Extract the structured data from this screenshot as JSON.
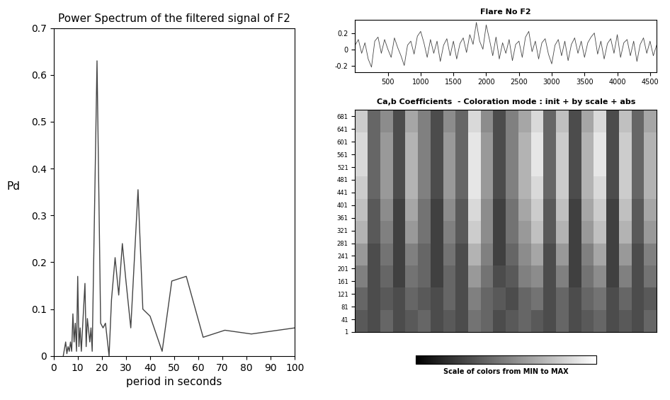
{
  "chart_data": [
    {
      "type": "line",
      "title": "Power Spectrum of the filtered signal of F2",
      "x_label": "period in seconds",
      "y_label": "Pd",
      "color": "#444444",
      "x": [
        4,
        5,
        5.5,
        6,
        6.5,
        7,
        7.5,
        8,
        8.5,
        9,
        9.5,
        10,
        10.5,
        11,
        11.5,
        12,
        13,
        13.5,
        14,
        15,
        15.5,
        16,
        18,
        19.5,
        20.5,
        21.5,
        23,
        24,
        25.5,
        27,
        28.5,
        30,
        32,
        35,
        37,
        40,
        45,
        49,
        55,
        62,
        71,
        82,
        100
      ],
      "values": [
        0,
        0.03,
        0.005,
        0.02,
        0.01,
        0.03,
        0.01,
        0.09,
        0.03,
        0.07,
        0.01,
        0.17,
        0.02,
        0.06,
        0.01,
        0.06,
        0.155,
        0.02,
        0.08,
        0.03,
        0.06,
        0.01,
        0.63,
        0.07,
        0.06,
        0.07,
        0.0,
        0.12,
        0.21,
        0.13,
        0.24,
        0.16,
        0.06,
        0.355,
        0.1,
        0.085,
        0.01,
        0.16,
        0.17,
        0.04,
        0.055,
        0.047,
        0.06
      ],
      "xlim": [
        0,
        100
      ],
      "xticks": [
        0,
        10,
        20,
        30,
        40,
        50,
        60,
        70,
        80,
        90,
        100
      ],
      "ylim": [
        0,
        0.7
      ],
      "yticks": [
        0,
        0.1,
        0.2,
        0.3,
        0.4,
        0.5,
        0.6,
        0.7
      ]
    },
    {
      "type": "line",
      "title": "Flare No F2",
      "color": "#444444",
      "x": [
        0,
        50,
        100,
        150,
        200,
        250,
        300,
        350,
        400,
        450,
        500,
        550,
        600,
        650,
        700,
        750,
        800,
        850,
        900,
        950,
        1000,
        1050,
        1100,
        1150,
        1200,
        1250,
        1300,
        1350,
        1400,
        1450,
        1500,
        1550,
        1600,
        1650,
        1700,
        1750,
        1800,
        1850,
        1900,
        1950,
        2000,
        2050,
        2100,
        2150,
        2200,
        2250,
        2300,
        2350,
        2400,
        2450,
        2500,
        2550,
        2600,
        2650,
        2700,
        2750,
        2800,
        2850,
        2900,
        2950,
        3000,
        3050,
        3100,
        3150,
        3200,
        3250,
        3300,
        3350,
        3400,
        3450,
        3500,
        3550,
        3600,
        3650,
        3700,
        3750,
        3800,
        3850,
        3900,
        3950,
        4000,
        4050,
        4100,
        4150,
        4200,
        4250,
        4300,
        4350,
        4400,
        4450,
        4500,
        4550,
        4600
      ],
      "values": [
        0.05,
        0.12,
        -0.05,
        0.08,
        -0.12,
        -0.22,
        0.1,
        0.15,
        -0.05,
        0.12,
        0.0,
        -0.1,
        0.14,
        0.02,
        -0.08,
        -0.2,
        0.05,
        0.1,
        -0.06,
        0.16,
        0.22,
        0.08,
        -0.1,
        0.12,
        -0.05,
        0.1,
        -0.15,
        0.05,
        0.13,
        -0.08,
        0.1,
        -0.12,
        0.07,
        0.14,
        -0.04,
        0.18,
        0.06,
        0.33,
        0.1,
        0.0,
        0.3,
        0.12,
        -0.08,
        0.15,
        -0.12,
        0.08,
        -0.05,
        0.12,
        -0.14,
        0.06,
        0.1,
        -0.1,
        0.15,
        0.22,
        -0.03,
        0.1,
        -0.12,
        0.08,
        0.13,
        -0.06,
        -0.18,
        0.05,
        0.12,
        -0.08,
        0.1,
        -0.14,
        0.06,
        0.14,
        -0.05,
        0.1,
        -0.1,
        0.08,
        0.15,
        0.2,
        -0.06,
        0.1,
        -0.12,
        0.07,
        0.13,
        -0.05,
        0.18,
        -0.1,
        0.08,
        0.12,
        -0.08,
        0.1,
        -0.15,
        0.06,
        0.14,
        -0.05,
        0.1,
        -0.08,
        0.05
      ],
      "xlim": [
        0,
        4600
      ],
      "xticks": [
        500,
        1000,
        1500,
        2000,
        2500,
        3000,
        3500,
        4000,
        4500
      ],
      "ylim": [
        -0.28,
        0.36
      ],
      "yticks": [
        -0.2,
        0,
        0.2
      ]
    },
    {
      "type": "heatmap",
      "title": "Ca,b Coefficients  - Coloration mode : init + by scale + abs",
      "colorbar_label": "Scale of colors from MIN to MAX",
      "tick_labels": "y",
      "x_edges": [
        0,
        192,
        383,
        575,
        767,
        958,
        1150,
        1342,
        1533,
        1725,
        1917,
        2108,
        2300,
        2492,
        2683,
        2875,
        3067,
        3258,
        3450,
        3642,
        3833,
        4025,
        4217,
        4408,
        4600
      ],
      "y_edges": [
        1,
        71,
        141,
        211,
        281,
        351,
        421,
        491,
        561,
        631,
        701
      ],
      "cells": [
        [
          0.35,
          0.3,
          0.4,
          0.3,
          0.35,
          0.4,
          0.3,
          0.35,
          0.3,
          0.45,
          0.4,
          0.3,
          0.35,
          0.4,
          0.35,
          0.3,
          0.4,
          0.3,
          0.35,
          0.4,
          0.3,
          0.35,
          0.3,
          0.4
        ],
        [
          0.4,
          0.3,
          0.35,
          0.3,
          0.4,
          0.35,
          0.3,
          0.4,
          0.3,
          0.5,
          0.4,
          0.35,
          0.3,
          0.4,
          0.45,
          0.3,
          0.4,
          0.3,
          0.4,
          0.45,
          0.3,
          0.4,
          0.3,
          0.35
        ],
        [
          0.5,
          0.3,
          0.4,
          0.25,
          0.45,
          0.4,
          0.25,
          0.4,
          0.3,
          0.6,
          0.45,
          0.3,
          0.35,
          0.5,
          0.55,
          0.3,
          0.5,
          0.25,
          0.45,
          0.55,
          0.25,
          0.5,
          0.3,
          0.45
        ],
        [
          0.6,
          0.3,
          0.45,
          0.25,
          0.5,
          0.4,
          0.25,
          0.45,
          0.3,
          0.7,
          0.5,
          0.25,
          0.4,
          0.55,
          0.65,
          0.3,
          0.6,
          0.25,
          0.5,
          0.65,
          0.25,
          0.6,
          0.3,
          0.5
        ],
        [
          0.7,
          0.35,
          0.5,
          0.25,
          0.6,
          0.45,
          0.25,
          0.5,
          0.35,
          0.8,
          0.55,
          0.25,
          0.45,
          0.6,
          0.75,
          0.35,
          0.7,
          0.25,
          0.6,
          0.75,
          0.25,
          0.7,
          0.35,
          0.6
        ],
        [
          0.75,
          0.35,
          0.55,
          0.25,
          0.65,
          0.45,
          0.25,
          0.55,
          0.35,
          0.85,
          0.55,
          0.25,
          0.45,
          0.65,
          0.8,
          0.35,
          0.75,
          0.25,
          0.65,
          0.8,
          0.25,
          0.75,
          0.35,
          0.65
        ],
        [
          0.8,
          0.4,
          0.6,
          0.3,
          0.7,
          0.5,
          0.3,
          0.6,
          0.4,
          0.9,
          0.6,
          0.3,
          0.5,
          0.7,
          0.85,
          0.4,
          0.8,
          0.3,
          0.7,
          0.85,
          0.3,
          0.8,
          0.4,
          0.7
        ],
        [
          0.85,
          0.4,
          0.6,
          0.3,
          0.7,
          0.5,
          0.3,
          0.6,
          0.4,
          0.9,
          0.6,
          0.3,
          0.5,
          0.7,
          0.9,
          0.4,
          0.8,
          0.3,
          0.7,
          0.9,
          0.3,
          0.8,
          0.4,
          0.7
        ],
        [
          0.85,
          0.4,
          0.6,
          0.3,
          0.7,
          0.5,
          0.3,
          0.6,
          0.4,
          0.9,
          0.6,
          0.3,
          0.5,
          0.7,
          0.9,
          0.4,
          0.8,
          0.3,
          0.7,
          0.9,
          0.3,
          0.8,
          0.4,
          0.7
        ],
        [
          0.8,
          0.4,
          0.55,
          0.3,
          0.65,
          0.5,
          0.3,
          0.55,
          0.4,
          0.85,
          0.55,
          0.3,
          0.5,
          0.65,
          0.85,
          0.4,
          0.75,
          0.3,
          0.65,
          0.85,
          0.3,
          0.75,
          0.4,
          0.65
        ]
      ],
      "color_range": [
        0,
        1
      ],
      "xlim": [
        0,
        4600
      ],
      "ylim": [
        1,
        701
      ],
      "yticks": [
        1,
        41,
        81,
        121,
        161,
        201,
        241,
        281,
        321,
        361,
        401,
        441,
        481,
        521,
        561,
        601,
        641,
        681
      ]
    }
  ]
}
